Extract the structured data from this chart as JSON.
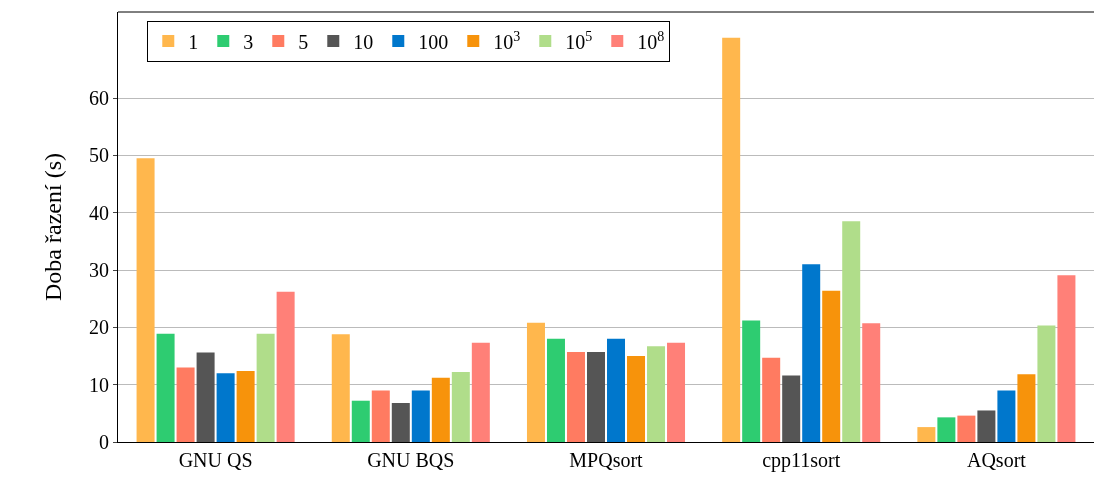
{
  "chart_data": {
    "type": "bar",
    "ylabel": "Doba řazení (s)",
    "categories": [
      "GNU QS",
      "GNU BQS",
      "MPQsort",
      "cpp11sort",
      "AQsort"
    ],
    "series": [
      {
        "name": "1",
        "color": "#ffb74d",
        "values": [
          49.5,
          18.8,
          20.8,
          70.5,
          2.6
        ]
      },
      {
        "name": "3",
        "color": "#2ecc71",
        "values": [
          18.9,
          7.2,
          18,
          21.2,
          4.3
        ]
      },
      {
        "name": "5",
        "color": "#ff7b61",
        "values": [
          13,
          9,
          15.7,
          14.7,
          4.6
        ]
      },
      {
        "name": "10",
        "color": "#555555",
        "values": [
          15.6,
          6.8,
          15.7,
          11.6,
          5.5
        ]
      },
      {
        "name": "100",
        "color": "#0077cc",
        "values": [
          12,
          9,
          18,
          31,
          9
        ]
      },
      {
        "name": "10$^{3}$",
        "color": "#f7930b",
        "values": [
          12.4,
          11.2,
          15,
          26.4,
          11.8
        ]
      },
      {
        "name": "10$^{5}$",
        "color": "#b0dd8a",
        "values": [
          18.9,
          12.2,
          16.7,
          38.5,
          20.3
        ]
      },
      {
        "name": "10$^{8}$",
        "color": "#ff8078",
        "values": [
          26.2,
          17.3,
          17.3,
          20.7,
          29.1
        ]
      }
    ],
    "ylim": [
      0,
      75
    ],
    "yticks": [
      0,
      10,
      20,
      30,
      40,
      50,
      60
    ],
    "grid": "y",
    "legend": "top left"
  }
}
